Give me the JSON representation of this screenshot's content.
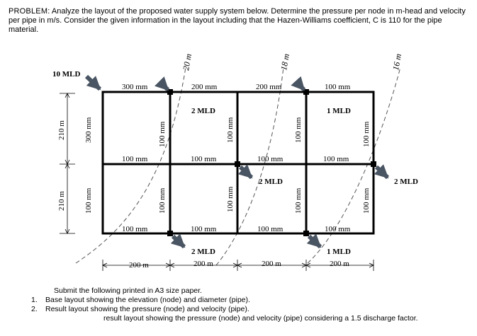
{
  "problem": {
    "label": "PROBLEM:",
    "text": "Analyze the layout of the proposed water supply system below. Determine the pressure per node in m-head and velocity per pipe in m/s. Consider the given information in the layout including that the Hazen-Williams coefficient, C is 110 for the pipe material."
  },
  "inflow": {
    "label": "10 MLD"
  },
  "elevations": [
    "20 m",
    "18 m",
    "16 m"
  ],
  "demands": [
    "2 MLD",
    "1 MLD",
    "2 MLD",
    "2 MLD",
    "2 MLD",
    "1 MLD"
  ],
  "pipes": {
    "top_row": [
      "300 mm",
      "200 mm",
      "200 mm",
      "100 mm"
    ],
    "middle_row": [
      "100 mm",
      "100 mm",
      "100 mm",
      "100 mm"
    ],
    "bottom_row": [
      "100 mm",
      "100 mm",
      "100 mm",
      "100 mm"
    ],
    "upper_verticals": [
      "300 mm",
      "100 mm",
      "100 mm",
      "100 mm",
      "100 mm"
    ],
    "lower_verticals": [
      "100 mm",
      "100 mm",
      "100 mm",
      "100 mm",
      "100 mm"
    ]
  },
  "dimensions": {
    "vertical": [
      "210 m",
      "210 m"
    ],
    "horizontal": [
      "200 m",
      "200 m",
      "200 m",
      "200 m"
    ]
  },
  "instructions": {
    "intro": "Submit the following printed in A3 size paper.",
    "items": [
      {
        "num": "1.",
        "text": "Base layout showing the elevation (node) and diameter (pipe)."
      },
      {
        "num": "2.",
        "text": "Result layout showing the pressure (node) and velocity (pipe)."
      }
    ],
    "extra": "result layout showing the pressure (node) and velocity (pipe) considering a 1.5 discharge factor."
  },
  "colors": {
    "pipe": "#000000",
    "arrow": "#4a5563",
    "contour": "#555555"
  }
}
